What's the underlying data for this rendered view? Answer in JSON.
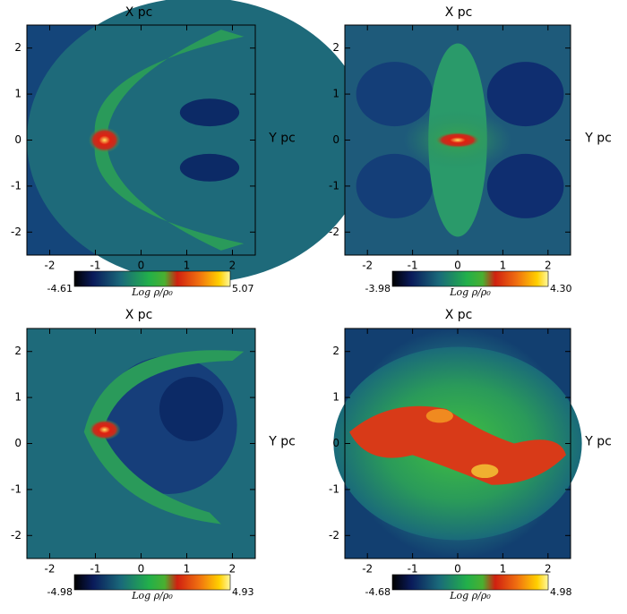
{
  "panels": [
    {
      "title": "X pc",
      "y_label": "Y pc",
      "xlim": [
        -2.5,
        2.5
      ],
      "ylim": [
        -2.5,
        2.5
      ],
      "xticks": [
        -2,
        -1,
        0,
        1,
        2
      ],
      "yticks": [
        -2,
        -1,
        0,
        1,
        2
      ],
      "colorbar": {
        "min": -4.61,
        "max": 5.07,
        "label": "Log ρ/ρ₀"
      }
    },
    {
      "title": "X pc",
      "y_label": "Y pc",
      "xlim": [
        -2.5,
        2.5
      ],
      "ylim": [
        -2.5,
        2.5
      ],
      "xticks": [
        -2,
        -1,
        0,
        1,
        2
      ],
      "yticks": [
        -2,
        -1,
        0,
        1,
        2
      ],
      "colorbar": {
        "min": -3.98,
        "max": {
          "value": 4.3,
          "label": "4.30"
        },
        "label": "Log ρ/ρ₀"
      }
    },
    {
      "title": "X pc",
      "y_label": "Y pc",
      "xlim": [
        -2.5,
        2.5
      ],
      "ylim": [
        -2.5,
        2.5
      ],
      "xticks": [
        -2,
        -1,
        0,
        1,
        2
      ],
      "yticks": [
        -2,
        -1,
        0,
        1,
        2
      ],
      "colorbar": {
        "min": -4.98,
        "max": 4.93,
        "label": "Log ρ/ρ₀"
      }
    },
    {
      "title": "X pc",
      "y_label": "Y pc",
      "xlim": [
        -2.5,
        2.5
      ],
      "ylim": [
        -2.5,
        2.5
      ],
      "xticks": [
        -2,
        -1,
        0,
        1,
        2
      ],
      "yticks": [
        -2,
        -1,
        0,
        1,
        2
      ],
      "colorbar": {
        "min": -4.68,
        "max": 4.98,
        "label": "Log ρ/ρ₀"
      }
    }
  ]
}
